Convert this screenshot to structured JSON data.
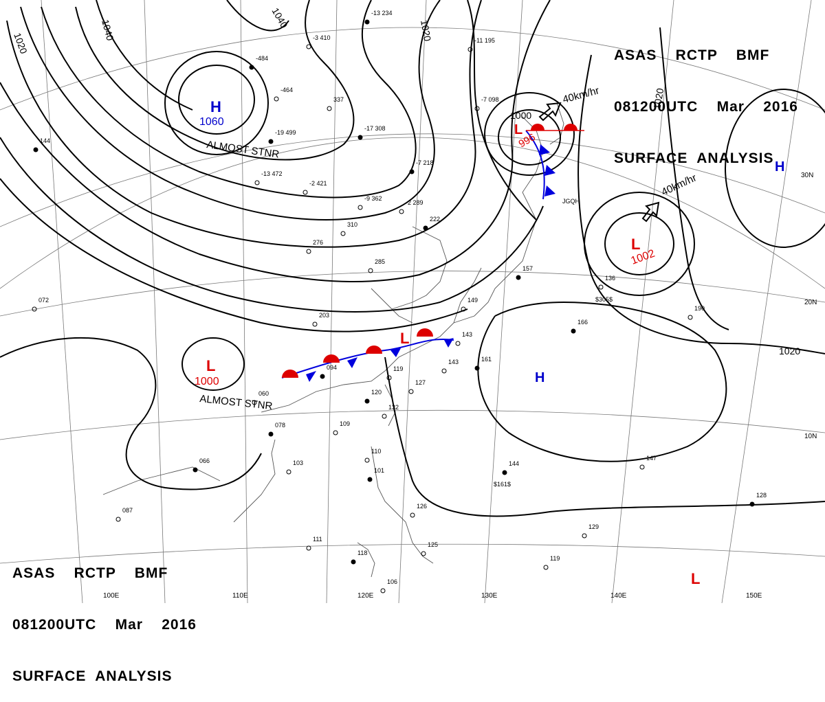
{
  "header": {
    "line1": "ASAS    RCTP    BMF",
    "line2": "081200UTC    Mar    2016",
    "line3": "SURFACE  ANALYSIS"
  },
  "isobar_labels": [
    "1020",
    "1040",
    "1040",
    "1020",
    "1000",
    "1020",
    "1020"
  ],
  "pressure_centers": [
    {
      "type": "H",
      "value": "1060",
      "color": "#0000cc",
      "note": "ALMOST STNR"
    },
    {
      "type": "L",
      "value": "1000",
      "color": "#dd0000",
      "note": "ALMOST STNR"
    },
    {
      "type": "L",
      "value": "996",
      "color": "#dd0000",
      "note": ""
    },
    {
      "type": "L",
      "value": "1002",
      "color": "#dd0000",
      "note": ""
    },
    {
      "type": "L",
      "value": "",
      "color": "#dd0000",
      "note": ""
    },
    {
      "type": "H",
      "value": "",
      "color": "#0000cc",
      "note": ""
    },
    {
      "type": "H",
      "value": "",
      "color": "#0000cc",
      "note": ""
    }
  ],
  "movement_labels": [
    "40km/hr",
    "40km/hr"
  ],
  "lat_labels": [
    "30N",
    "20N",
    "10N"
  ],
  "lon_labels": [
    "100E",
    "110E",
    "120E",
    "130E",
    "140E",
    "150E"
  ],
  "ship_labels": [
    "JGQH",
    "$305$",
    "$161$"
  ],
  "station_plots": [
    "-13  234",
    "-11  195",
    "-3  410",
    "-484",
    "-464",
    "337",
    "-19  499",
    "-13  472",
    "-2  421",
    "-7  218",
    "-9  362",
    "-2  289",
    "-17  308",
    "310",
    "276",
    "222",
    "285",
    "-7  098",
    "157",
    "136",
    "190",
    "166",
    "143",
    "149",
    "161",
    "203",
    "143",
    "094",
    "119",
    "127",
    "120",
    "132",
    "109",
    "078",
    "060",
    "103",
    "066",
    "087",
    "110",
    "101",
    "126",
    "125",
    "144",
    "147",
    "129",
    "128",
    "119",
    "111",
    "118",
    "106",
    "072",
    "144"
  ],
  "colors": {
    "isobar": "#000000",
    "warm_front": "#dd0000",
    "cold_front": "#0000dd",
    "low": "#dd0000",
    "high": "#0000cc",
    "grid": "#777777",
    "coast": "#555555"
  }
}
